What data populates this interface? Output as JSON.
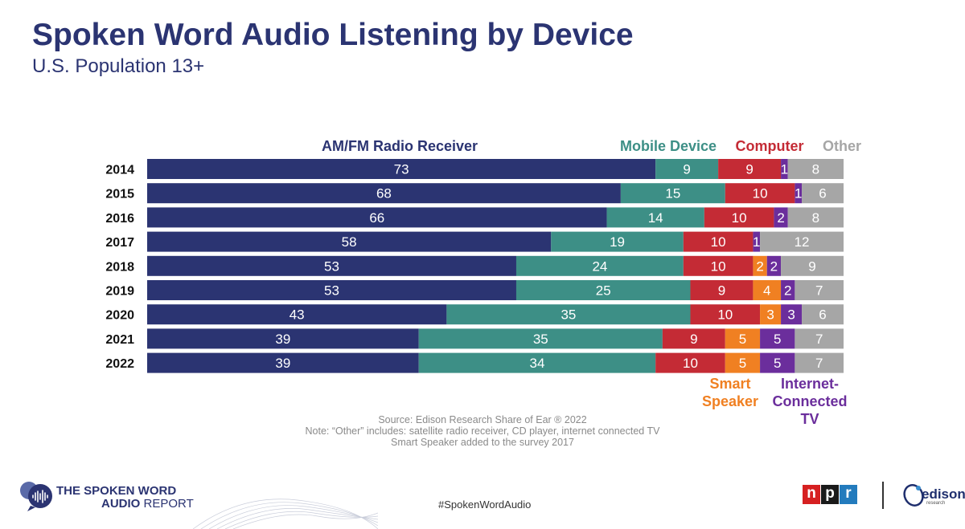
{
  "header": {
    "title": "Spoken Word Audio Listening by Device",
    "subtitle": "U.S. Population 13+"
  },
  "chart_data": {
    "type": "bar",
    "orientation": "horizontal",
    "stacked": true,
    "categories": [
      "2014",
      "2015",
      "2016",
      "2017",
      "2018",
      "2019",
      "2020",
      "2021",
      "2022"
    ],
    "series": [
      {
        "name": "AM/FM Radio Receiver",
        "color": "#2b3472",
        "values": [
          73,
          68,
          66,
          58,
          53,
          53,
          43,
          39,
          39
        ]
      },
      {
        "name": "Mobile Device",
        "color": "#3d8f86",
        "values": [
          9,
          15,
          14,
          19,
          24,
          25,
          35,
          35,
          34
        ]
      },
      {
        "name": "Computer",
        "color": "#c42b35",
        "values": [
          9,
          10,
          10,
          10,
          10,
          9,
          10,
          9,
          10
        ]
      },
      {
        "name": "Smart Speaker",
        "color": "#f08022",
        "values": [
          null,
          null,
          null,
          null,
          2,
          4,
          3,
          5,
          5
        ]
      },
      {
        "name": "Internet-Connected TV",
        "color": "#6b2e9c",
        "values": [
          1,
          1,
          2,
          1,
          2,
          2,
          3,
          5,
          5
        ]
      },
      {
        "name": "Other",
        "color": "#a6a6a6",
        "values": [
          8,
          6,
          8,
          12,
          9,
          7,
          6,
          7,
          7
        ]
      }
    ],
    "xlim": [
      0,
      100
    ],
    "legend": {
      "top": [
        "AM/FM Radio Receiver",
        "Mobile Device",
        "Computer",
        "Other"
      ],
      "bottom": [
        "Smart Speaker",
        "Internet-Connected TV"
      ],
      "bottom_lines": [
        [
          "Smart",
          "Speaker"
        ],
        [
          "Internet-",
          "Connected",
          "TV"
        ]
      ]
    }
  },
  "notes": {
    "source": "Source: Edison Research Share of Ear ® 2022",
    "note1": "Note: “Other” includes: satellite radio receiver, CD player, internet connected TV",
    "note2": "Smart Speaker added to the survey 2017"
  },
  "footer": {
    "brand_line1": "THE SPOKEN WORD",
    "brand_line2_bold": "AUDIO",
    "brand_line2_light": " REPORT",
    "hashtag": "#SpokenWordAudio",
    "npr_letters": [
      "n",
      "p",
      "r"
    ],
    "npr_colors": [
      "#d62021",
      "#1a1a1a",
      "#237bbd"
    ],
    "edison_name": "edison",
    "edison_sub": "research",
    "edison_color": "#1f2f6e"
  }
}
